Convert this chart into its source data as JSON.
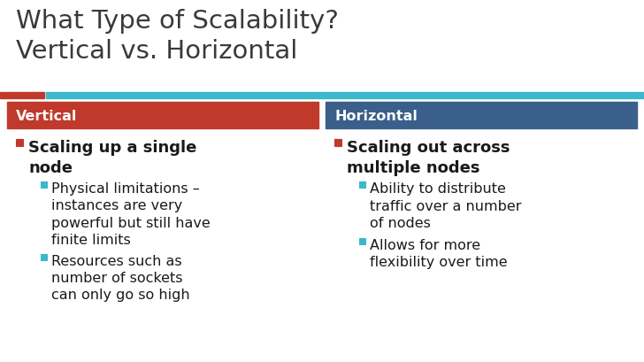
{
  "title_line1": "What Type of Scalability?",
  "title_line2": "Vertical vs. Horizontal",
  "title_color": "#3a3a3a",
  "title_fontsize": 21,
  "bg_color": "#ffffff",
  "accent_bar_color": "#3ab8cc",
  "accent_bar_left_color": "#c0392b",
  "left_header": "Vertical",
  "right_header": "Horizontal",
  "left_header_bg": "#c0392b",
  "right_header_bg": "#3a5f8a",
  "header_text_color": "#ffffff",
  "header_fontsize": 11.5,
  "bullet_color": "#1a1a1a",
  "bullet_fontsize": 13,
  "sub_bullet_fontsize": 11.5,
  "bullet_marker_color": "#c0392b",
  "sub_bullet_marker_color": "#3ab8cc",
  "left_bullets": [
    {
      "text": "Scaling up a single\nnode",
      "sub": [
        "Physical limitations –\ninstances are very\npowerful but still have\nfinite limits",
        "Resources such as\nnumber of sockets\ncan only go so high"
      ]
    }
  ],
  "right_bullets": [
    {
      "text": "Scaling out across\nmultiple nodes",
      "sub": [
        "Ability to distribute\ntraffic over a number\nof nodes",
        "Allows for more\nflexibility over time"
      ]
    }
  ],
  "fig_width": 7.28,
  "fig_height": 4.1,
  "dpi": 100
}
